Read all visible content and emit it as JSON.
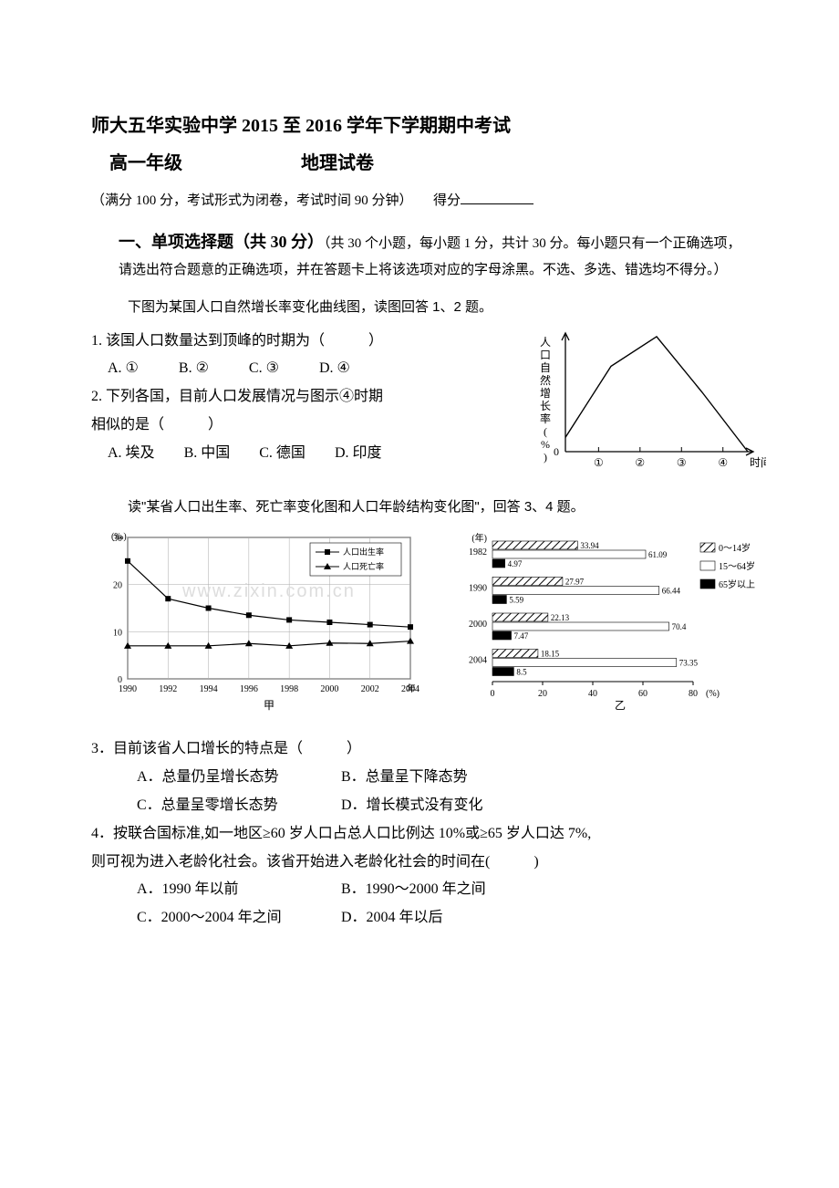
{
  "title_main": "师大五华实验中学 2015 至 2016 学年下学期期中考试",
  "title_sub_left": "高一年级",
  "title_sub_right": "地理试卷",
  "meta": "（满分 100 分，考试形式为闭卷，考试时间 90 分钟）　　得分",
  "section1_title": "一、单项选择题（共 30 分）",
  "section1_desc": "（共 30 个小题，每小题 1 分，共计 30 分。每小题只有一个正确选项，请选出符合题意的正确选项，并在答题卡上将该选项对应的字母涂黑。不选、多选、错选均不得分。）",
  "context12": "下图为某国人口自然增长率变化曲线图，读图回答 1、2 题。",
  "q1_text": "1. 该国人口数量达到顶峰的时期为（　　　）",
  "q1_options": {
    "A": "A. ①",
    "B": "B. ②",
    "C": "C. ③",
    "D": "D. ④"
  },
  "q2_text": "2. 下列各国，目前人口发展情况与图示④时期",
  "q2_text_line2": "相似的是（　　　）",
  "q2_options": {
    "A": "A. 埃及",
    "B": "B. 中国",
    "C": "C. 德国",
    "D": "D. 印度"
  },
  "chart12": {
    "type": "line",
    "y_label": "人口自然增长率(%)",
    "x_ticks": [
      "①",
      "②",
      "③",
      "④"
    ],
    "x_axis_label": "时间",
    "points": [
      [
        0,
        0.12
      ],
      [
        1,
        0.72
      ],
      [
        2,
        0.97
      ],
      [
        3,
        0.5
      ],
      [
        4,
        0
      ]
    ],
    "axis_color": "#000",
    "line_color": "#000",
    "line_width": 1.4,
    "bg": "#fff"
  },
  "watermark_text": "www.zixin.com.cn",
  "context34": "读\"某省人口出生率、死亡率变化图和人口年龄结构变化图\"，回答 3、4 题。",
  "chart_left": {
    "type": "line",
    "title": "甲",
    "y_unit": "(‰)",
    "x_years": [
      1990,
      1992,
      1994,
      1996,
      1998,
      2000,
      2002,
      2004
    ],
    "y_ticks": [
      0,
      10,
      20,
      30
    ],
    "series": [
      {
        "name": "人口出生率",
        "marker": "square",
        "color": "#000",
        "values": [
          25,
          17,
          15,
          13.5,
          12.5,
          12,
          11.5,
          11
        ]
      },
      {
        "name": "人口死亡率",
        "marker": "triangle",
        "color": "#000",
        "values": [
          7,
          7,
          7,
          7.5,
          7,
          7.6,
          7.5,
          8
        ]
      }
    ],
    "grid_color": "#aaa",
    "bg": "#fff",
    "label_fontsize": 10
  },
  "chart_right": {
    "type": "hbar_grouped",
    "title": "乙",
    "y_unit": "(年)",
    "x_unit": "(%)",
    "years": [
      1982,
      1990,
      2000,
      2004
    ],
    "x_ticks": [
      0,
      20,
      40,
      60,
      80
    ],
    "legend": [
      {
        "name": "0～14 岁",
        "pattern": "hatch",
        "key_label": "0～14岁"
      },
      {
        "name": "15～64 岁",
        "pattern": "white",
        "key_label": "15～64岁"
      },
      {
        "name": "65 岁以上",
        "pattern": "solid",
        "key_label": "65岁以上"
      }
    ],
    "data": {
      "1982": {
        "c0_14": 33.94,
        "c15_64": 61.09,
        "c65_": 4.97
      },
      "1990": {
        "c0_14": 27.97,
        "c15_64": 66.44,
        "c65_": 5.59
      },
      "2000": {
        "c0_14": 22.13,
        "c15_64": 70.4,
        "c65_": 7.47
      },
      "2004": {
        "c0_14": 18.15,
        "c15_64": 73.35,
        "c65_": 8.5
      }
    },
    "bar_colors": {
      "hatch_stroke": "#000",
      "white_fill": "#fff",
      "solid_fill": "#000"
    },
    "bg": "#fff"
  },
  "q3_text": "3．目前该省人口增长的特点是（　　　）",
  "q3_options": {
    "A": "A．总量仍呈增长态势",
    "B": "B．总量呈下降态势",
    "C": "C．总量呈零增长态势",
    "D": "D．增长模式没有变化"
  },
  "q4_pre": "4．按联合国标准,如一地区≥60 岁人口占总人口比例达 10%或≥65 岁人口达 7%,",
  "q4_line2": "则可视为进入老龄化社会。该省开始进入老龄化社会的时间在(　　　)",
  "q4_options": {
    "A": "A．1990 年以前",
    "B": "B．1990～2000 年之间",
    "C": "C．2000～2004 年之间",
    "D": "D．2004 年以后"
  }
}
